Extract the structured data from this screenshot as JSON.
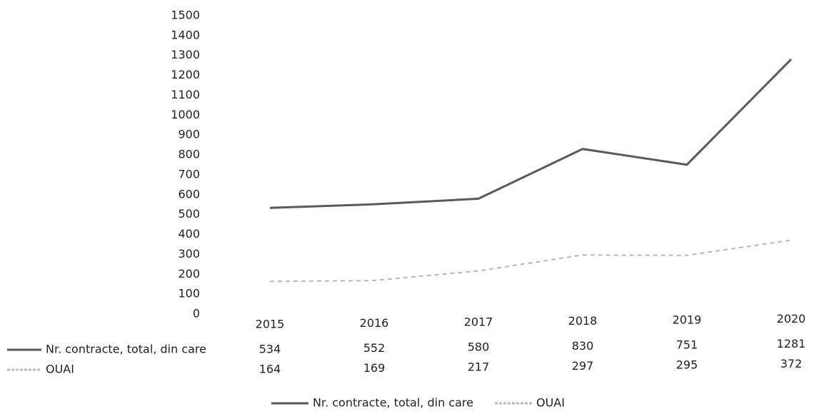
{
  "chart_data": {
    "type": "line",
    "categories": [
      "2015",
      "2016",
      "2017",
      "2018",
      "2019",
      "2020"
    ],
    "series": [
      {
        "name": "Nr. contracte, total, din care",
        "color": "#5a5a5a",
        "values": [
          534,
          552,
          580,
          830,
          751,
          1281
        ]
      },
      {
        "name": "OUAI",
        "color": "#b8b8b8",
        "values": [
          164,
          169,
          217,
          297,
          295,
          372
        ]
      }
    ],
    "ylim": [
      0,
      1500
    ],
    "yticks": [
      0,
      100,
      200,
      300,
      400,
      500,
      600,
      700,
      800,
      900,
      1000,
      1100,
      1200,
      1300,
      1400,
      1500
    ],
    "legend": "bottom"
  }
}
